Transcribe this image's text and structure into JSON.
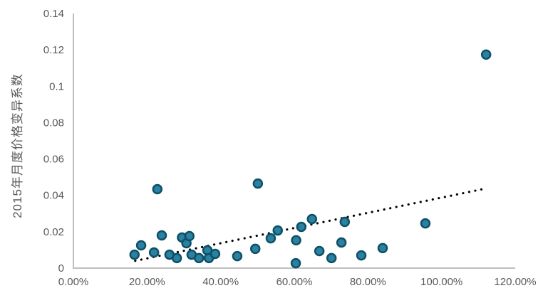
{
  "chart_data": {
    "type": "scatter",
    "title": "",
    "xlabel": "",
    "ylabel": "2015年月度价格变异系数",
    "xlim": [
      0,
      1.2
    ],
    "ylim": [
      0,
      0.14
    ],
    "grid": false,
    "legend_position": "none",
    "x_tick_labels": [
      "0.00%",
      "20.00%",
      "40.00%",
      "60.00%",
      "80.00%",
      "100.00%",
      "120.00%"
    ],
    "x_tick_values": [
      0,
      0.2,
      0.4,
      0.6,
      0.8,
      1.0,
      1.2
    ],
    "y_tick_labels": [
      "0",
      "0.02",
      "0.04",
      "0.06",
      "0.08",
      "0.1",
      "0.12",
      "0.14"
    ],
    "y_tick_values": [
      0,
      0.02,
      0.04,
      0.06,
      0.08,
      0.1,
      0.12,
      0.14
    ],
    "axis_color": "#BFBFBF",
    "tick_label_color": "#595959",
    "series": [
      {
        "name": "monthly-price-cv-points",
        "marker": "circle",
        "marker_fill": "#1F7A9B",
        "marker_stroke": "#0E5068",
        "points": [
          [
            0.166,
            0.0074
          ],
          [
            0.184,
            0.0125
          ],
          [
            0.219,
            0.0086
          ],
          [
            0.228,
            0.0434
          ],
          [
            0.24,
            0.018
          ],
          [
            0.261,
            0.0074
          ],
          [
            0.281,
            0.0055
          ],
          [
            0.295,
            0.0168
          ],
          [
            0.307,
            0.0137
          ],
          [
            0.315,
            0.0176
          ],
          [
            0.321,
            0.0074
          ],
          [
            0.341,
            0.0055
          ],
          [
            0.364,
            0.0098
          ],
          [
            0.368,
            0.0055
          ],
          [
            0.385,
            0.0078
          ],
          [
            0.445,
            0.0066
          ],
          [
            0.494,
            0.0106
          ],
          [
            0.501,
            0.0465
          ],
          [
            0.536,
            0.0164
          ],
          [
            0.555,
            0.0207
          ],
          [
            0.604,
            0.0027
          ],
          [
            0.605,
            0.0153
          ],
          [
            0.619,
            0.0227
          ],
          [
            0.648,
            0.027
          ],
          [
            0.668,
            0.0094
          ],
          [
            0.701,
            0.0055
          ],
          [
            0.728,
            0.0141
          ],
          [
            0.737,
            0.0254
          ],
          [
            0.782,
            0.007
          ],
          [
            0.84,
            0.011
          ],
          [
            0.956,
            0.0246
          ],
          [
            1.121,
            0.1174
          ]
        ]
      }
    ],
    "trendline": {
      "style": "dotted",
      "color": "#000000",
      "start": [
        0.168,
        0.004
      ],
      "end": [
        1.111,
        0.0434
      ]
    }
  }
}
